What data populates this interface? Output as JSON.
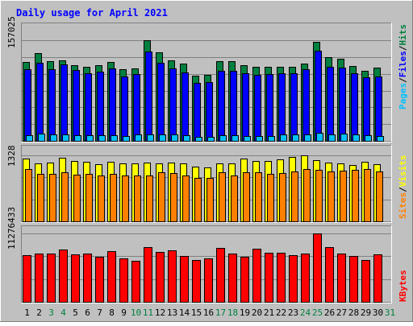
{
  "chart_data": {
    "type": "bar",
    "title": "Daily usage for April 2021",
    "categories": [
      "1",
      "2",
      "3",
      "4",
      "5",
      "6",
      "7",
      "8",
      "9",
      "10",
      "11",
      "12",
      "13",
      "14",
      "15",
      "16",
      "17",
      "18",
      "19",
      "20",
      "21",
      "22",
      "23",
      "24",
      "25",
      "26",
      "27",
      "28",
      "29",
      "30",
      "31"
    ],
    "weekend_days": [
      "3",
      "4",
      "10",
      "11",
      "17",
      "18",
      "24",
      "25",
      "31"
    ],
    "panels": [
      {
        "id": "hits-files-pages",
        "max_label": "157025",
        "ylim": [
          0,
          157025
        ],
        "legend": [
          {
            "label": "Pages",
            "color": "#00c0ff"
          },
          {
            "label": "Files",
            "color": "#0000ff"
          },
          {
            "label": "Hits",
            "color": "#008040"
          }
        ],
        "series": [
          {
            "name": "Hits",
            "color": "#008040",
            "values": [
              123500,
              137000,
              124000,
              126000,
              117700,
              116000,
              117700,
              123000,
              111700,
              113600,
              157025,
              138000,
              126000,
              120500,
              102000,
              103500,
              124000,
              124000,
              118700,
              116000,
              116000,
              115000,
              115000,
              120000,
              155000,
              131000,
              128000,
              117000,
              109000,
              114500,
              0
            ]
          },
          {
            "name": "Files",
            "color": "#0000ff",
            "values": [
              112000,
              122000,
              112000,
              119000,
              110000,
              106000,
              108000,
              113000,
              101000,
              104000,
              140000,
              122000,
              113000,
              106500,
              90000,
              92000,
              109000,
              109000,
              106000,
              103000,
              104000,
              106000,
              106000,
              112000,
              141000,
              116000,
              114000,
              106000,
              99500,
              101000,
              0
            ]
          },
          {
            "name": "Pages",
            "color": "#00c0ff",
            "values": [
              9000,
              11000,
              10000,
              10000,
              9000,
              8500,
              8500,
              8500,
              8000,
              10000,
              10500,
              10000,
              10000,
              9000,
              6000,
              6500,
              8500,
              9000,
              7500,
              7500,
              7500,
              10000,
              10000,
              10000,
              13000,
              10000,
              11000,
              10000,
              8500,
              7500,
              0
            ]
          }
        ]
      },
      {
        "id": "visits-sites",
        "max_label": "1328",
        "ylim": [
          0,
          1328
        ],
        "legend": [
          {
            "label": "Sites",
            "color": "#ff8000"
          },
          {
            "label": "Visits",
            "color": "#ffff00"
          }
        ],
        "series": [
          {
            "name": "Visits",
            "color": "#ffff00",
            "values": [
              1260,
              1170,
              1180,
              1280,
              1220,
              1200,
              1150,
              1200,
              1170,
              1170,
              1180,
              1170,
              1180,
              1160,
              1100,
              1080,
              1170,
              1160,
              1260,
              1210,
              1210,
              1250,
              1300,
              1328,
              1230,
              1180,
              1170,
              1140,
              1200,
              1150,
              0
            ]
          },
          {
            "name": "Sites",
            "color": "#ff8000",
            "values": [
              1050,
              960,
              960,
              990,
              940,
              950,
              920,
              960,
              920,
              930,
              920,
              990,
              970,
              920,
              880,
              880,
              990,
              920,
              990,
              980,
              960,
              970,
              1000,
              1060,
              1040,
              1000,
              1020,
              1040,
              1060,
              1000,
              0
            ]
          }
        ]
      },
      {
        "id": "kbytes",
        "max_label": "11276433",
        "ylim": [
          0,
          11276433
        ],
        "legend": [
          {
            "label": "KBytes",
            "color": "#ff0000"
          }
        ],
        "series": [
          {
            "name": "KBytes",
            "color": "#ff0000",
            "values": [
              7700000,
              7900000,
              8000000,
              8600000,
              7800000,
              7900000,
              7400000,
              8300000,
              7200000,
              6700000,
              9000000,
              8200000,
              8500000,
              7600000,
              6900000,
              7100000,
              8900000,
              8000000,
              7400000,
              8800000,
              8100000,
              8100000,
              7700000,
              8000000,
              11276433,
              9000000,
              8000000,
              7600000,
              6900000,
              7800000,
              0
            ]
          }
        ]
      }
    ]
  }
}
